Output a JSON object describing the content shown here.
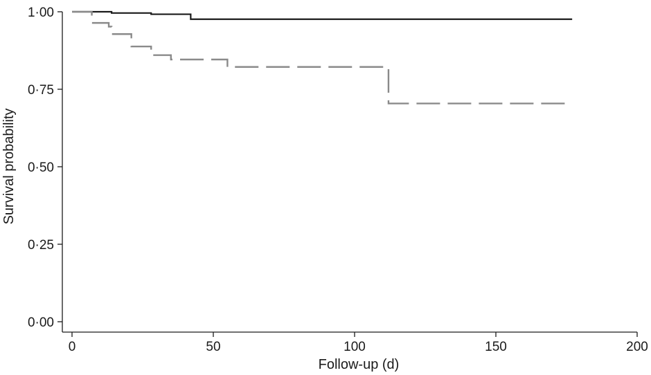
{
  "chart_data": {
    "type": "line",
    "title": "",
    "xlabel": "Follow-up (d)",
    "ylabel": "Survival probability",
    "xlim": [
      0,
      200
    ],
    "ylim": [
      0,
      1
    ],
    "x_ticks": [
      0,
      50,
      100,
      150,
      200
    ],
    "y_ticks": [
      0,
      0.25,
      0.5,
      0.75,
      1.0
    ],
    "x_tick_labels": [
      "0",
      "50",
      "100",
      "150",
      "200"
    ],
    "y_tick_labels": [
      "0·00",
      "0·25",
      "0·50",
      "0·75",
      "1·00"
    ],
    "grid": false,
    "legend": "none",
    "step": true,
    "series": [
      {
        "line_style": "solid",
        "color": "#1a1a1a",
        "points": [
          [
            0,
            1.0
          ],
          [
            14,
            0.996
          ],
          [
            28,
            0.992
          ],
          [
            42,
            0.976
          ],
          [
            177,
            0.976
          ]
        ]
      },
      {
        "line_style": "dashed",
        "color": "#8a8a8a",
        "points": [
          [
            0,
            1.0
          ],
          [
            7,
            0.964
          ],
          [
            13,
            0.952
          ],
          [
            14,
            0.928
          ],
          [
            21,
            0.888
          ],
          [
            28,
            0.86
          ],
          [
            35,
            0.846
          ],
          [
            55,
            0.822
          ],
          [
            112,
            0.704
          ],
          [
            175,
            0.704
          ]
        ]
      }
    ]
  }
}
